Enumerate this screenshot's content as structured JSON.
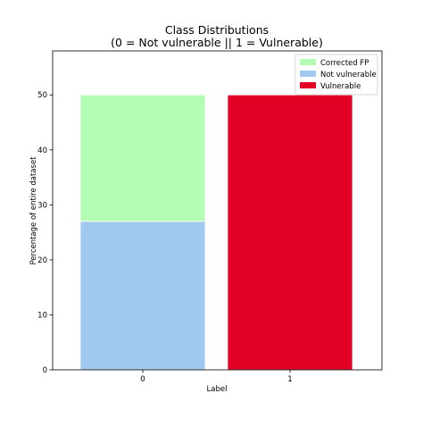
{
  "chart_data": {
    "type": "bar",
    "stacked": true,
    "title_line1": "Class Distributions",
    "title_line2": "(0 = Not vulnerable || 1 = Vulnerable)",
    "xlabel": "Label",
    "ylabel": "Percentage of entire dataset",
    "categories": [
      "0",
      "1"
    ],
    "ylim": [
      0,
      58
    ],
    "yticks": [
      0,
      10,
      20,
      30,
      40,
      50
    ],
    "grid": false,
    "legend_position": "top-right",
    "series": [
      {
        "name": "Not vulnerable",
        "color": "#a1c9f0",
        "values": [
          27,
          0
        ]
      },
      {
        "name": "Corrected FP",
        "color": "#b3fdb5",
        "values": [
          23,
          0
        ]
      },
      {
        "name": "Vulnerable",
        "color": "#e20024",
        "values": [
          0,
          50
        ]
      }
    ],
    "legend_order": [
      "Corrected FP",
      "Not vulnerable",
      "Vulnerable"
    ]
  }
}
